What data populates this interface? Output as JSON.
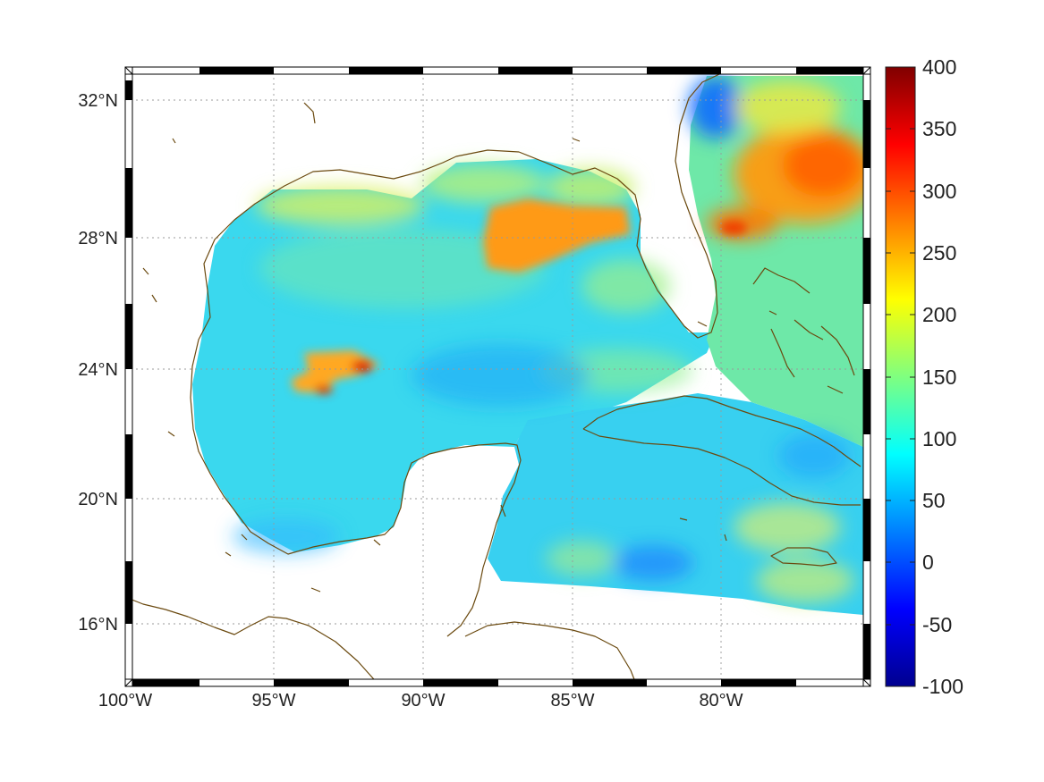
{
  "map": {
    "x_ticks": [
      "100°W",
      "95°W",
      "90°W",
      "85°W",
      "80°W"
    ],
    "y_ticks": [
      "32°N",
      "28°N",
      "24°N",
      "20°N",
      "16°N"
    ],
    "lon_range": [
      -100,
      -75
    ],
    "lat_range": [
      14.2,
      33
    ],
    "grid": "dotted",
    "coastline_color": "#6b4a10"
  },
  "colorbar": {
    "ticks": [
      "400",
      "350",
      "300",
      "250",
      "200",
      "150",
      "100",
      "50",
      "0",
      "-50",
      "-100"
    ],
    "range": [
      -100,
      400
    ],
    "colormap": "jet"
  }
}
